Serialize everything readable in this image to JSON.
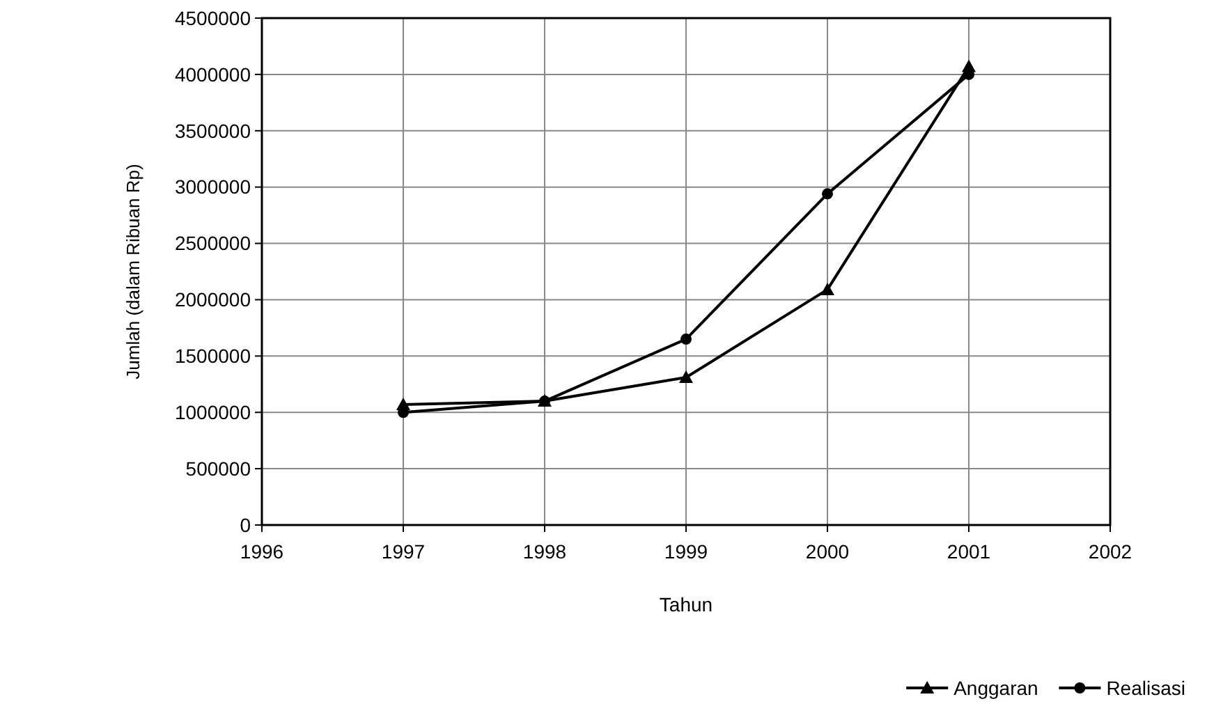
{
  "chart_data": {
    "type": "line",
    "xlabel": "Tahun",
    "ylabel": "Jumlah (dalam Ribuan Rp)",
    "x": [
      1997,
      1998,
      1999,
      2000,
      2001
    ],
    "series": [
      {
        "name": "Anggaran",
        "color": "#000000",
        "marker": "triangle",
        "values": [
          1070000,
          1100000,
          1310000,
          2090000,
          4070000
        ]
      },
      {
        "name": "Realisasi",
        "color": "#000000",
        "marker": "circle",
        "values": [
          1000000,
          1100000,
          1650000,
          2940000,
          4000000
        ]
      }
    ],
    "xlim": [
      1996,
      2002
    ],
    "xticks": [
      1996,
      1997,
      1998,
      1999,
      2000,
      2001,
      2002
    ],
    "ylim": [
      0,
      4500000
    ],
    "yticks": [
      0,
      500000,
      1000000,
      1500000,
      2000000,
      2500000,
      3000000,
      3500000,
      4000000,
      4500000
    ],
    "grid": true,
    "legend": "bottom right",
    "line_style": "solid"
  }
}
